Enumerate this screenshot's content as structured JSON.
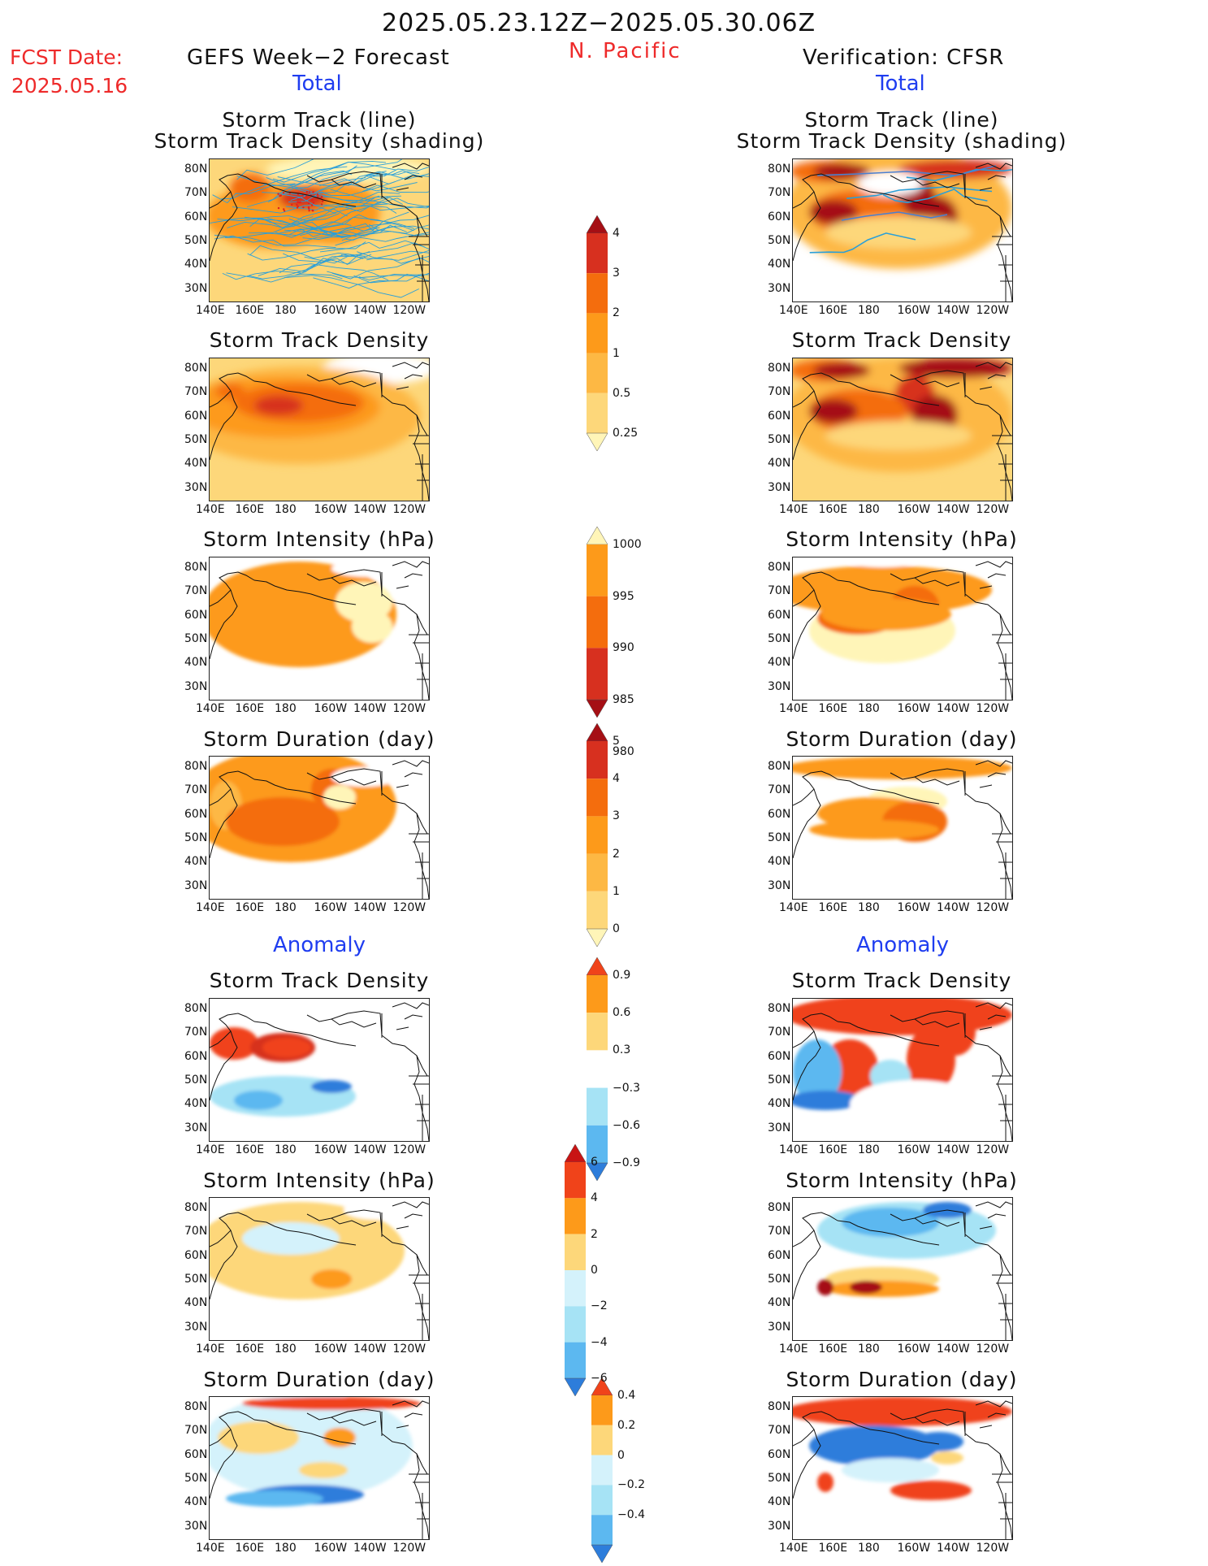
{
  "title": "2025.05.23.12Z−2025.05.30.06Z",
  "region": "N. Pacific",
  "fcst": {
    "label": "FCST Date:",
    "date": "2025.05.16"
  },
  "left_header": "GEFS Week−2 Forecast",
  "right_header": "Verification: CFSR",
  "total_label": "Total",
  "anomaly_label": "Anomaly",
  "titles": {
    "track": "Storm Track (line)",
    "track_density_shading": "Storm Track Density (shading)",
    "density": "Storm Track Density",
    "intensity": "Storm Intensity (hPa)",
    "duration": "Storm Duration (day)"
  },
  "axes": {
    "lat_ticks": [
      "80N",
      "70N",
      "60N",
      "50N",
      "40N",
      "30N"
    ],
    "lon_ticks": [
      "140E",
      "160E",
      "180",
      "160W",
      "140W",
      "120W"
    ]
  },
  "colorbars": {
    "density": {
      "labels": [
        "4",
        "3",
        "2",
        "1",
        "0.5",
        "0.25"
      ],
      "colors": [
        "#a50f15",
        "#d7301f",
        "#f46d0d",
        "#fd9a1a",
        "#fdb844",
        "#fdd77a",
        "#fff5b8"
      ]
    },
    "intensity": {
      "labels": [
        "1000",
        "995",
        "990",
        "985",
        "980"
      ],
      "colors": [
        "#fff5b8",
        "#fd9a1a",
        "#f46d0d",
        "#d7301f",
        "#a50f15"
      ]
    },
    "duration": {
      "labels": [
        "5",
        "4",
        "3",
        "2",
        "1",
        "0"
      ],
      "colors": [
        "#a50f15",
        "#d7301f",
        "#f46d0d",
        "#fd9a1a",
        "#fdb844",
        "#fdd77a",
        "#fff5b8"
      ]
    },
    "anom_density": {
      "labels": [
        "0.9",
        "0.6",
        "0.3",
        "−0.3",
        "−0.6",
        "−0.9"
      ],
      "colors": [
        "#f0431a",
        "#fd9a1a",
        "#fdd77a",
        "#ffffff",
        "#a6e3f5",
        "#5cb8f0",
        "#2d7ddb"
      ]
    },
    "anom_intensity": {
      "labels": [
        "6",
        "4",
        "2",
        "0",
        "−2",
        "−4",
        "−6"
      ],
      "colors": [
        "#c81414",
        "#f0431a",
        "#fd9a1a",
        "#fdd77a",
        "#d4f2fb",
        "#a6e3f5",
        "#5cb8f0",
        "#2d7ddb"
      ]
    },
    "anom_duration": {
      "labels": [
        "0.4",
        "0.2",
        "0",
        "−0.2",
        "−0.4"
      ],
      "colors": [
        "#f0431a",
        "#fd9a1a",
        "#fdd77a",
        "#d4f2fb",
        "#a6e3f5",
        "#5cb8f0",
        "#2d7ddb"
      ]
    }
  },
  "colors": {
    "accent_red": "#ee2a2a",
    "accent_blue": "#1f3df0",
    "track_line": "#2a9fd8"
  }
}
